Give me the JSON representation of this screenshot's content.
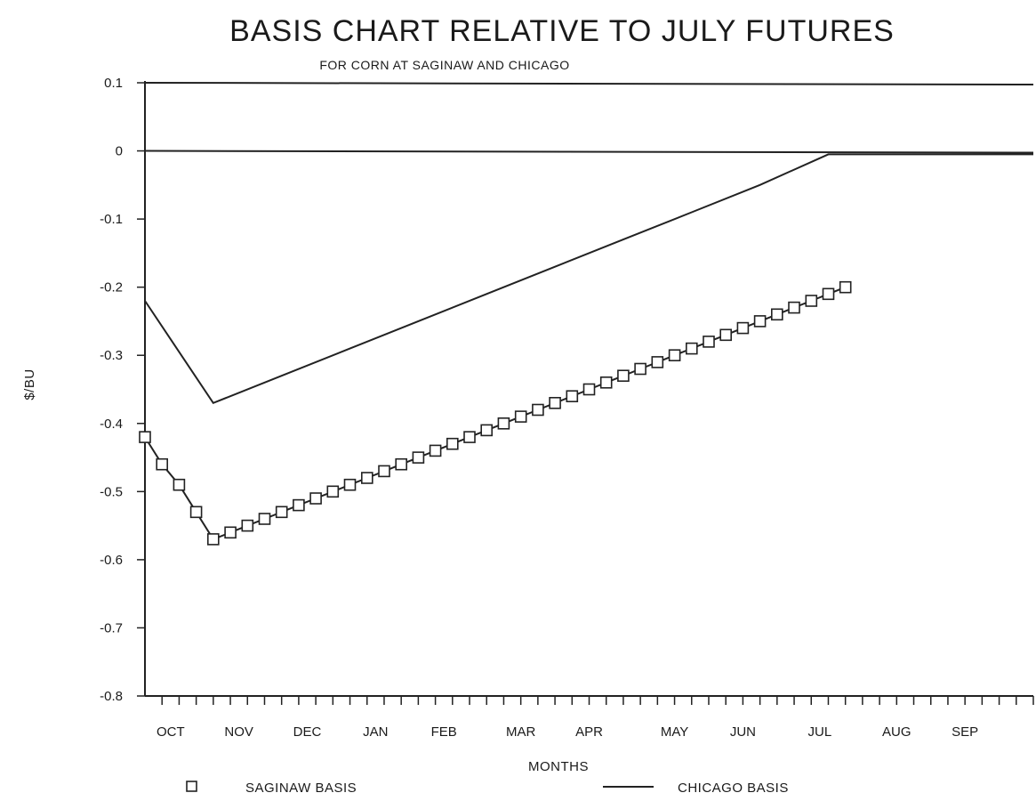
{
  "chart_data": {
    "type": "line",
    "title": "BASIS CHART RELATIVE TO JULY FUTURES",
    "subtitle": "FOR CORN AT SAGINAW AND CHICAGO",
    "xlabel": "MONTHS",
    "ylabel": "$/BU",
    "ylim": [
      -0.8,
      0.1
    ],
    "yticks": [
      "0.1",
      "0",
      "-0.1",
      "-0.2",
      "-0.3",
      "-0.4",
      "-0.5",
      "-0.6",
      "-0.7",
      "-0.8"
    ],
    "ytick_values": [
      0.1,
      0,
      -0.1,
      -0.2,
      -0.3,
      -0.4,
      -0.5,
      -0.6,
      -0.7,
      -0.8
    ],
    "xlim": [
      0,
      52
    ],
    "x_unit": "weeks",
    "x_categories": [
      "OCT",
      "NOV",
      "DEC",
      "JAN",
      "FEB",
      "MAR",
      "APR",
      "MAY",
      "JUN",
      "JUL",
      "AUG",
      "SEP"
    ],
    "x_category_positions": [
      1.5,
      5.5,
      9.5,
      13.5,
      17.5,
      22,
      26,
      31,
      35,
      39.5,
      44,
      48
    ],
    "grid": false,
    "legend_position": "bottom",
    "reference_lines": [
      0.1,
      0
    ],
    "series": [
      {
        "name": "SAGINAW BASIS",
        "marker": "square",
        "x": [
          0,
          1,
          2,
          3,
          4,
          5,
          6,
          7,
          8,
          9,
          10,
          11,
          12,
          13,
          14,
          15,
          16,
          17,
          18,
          19,
          20,
          21,
          22,
          23,
          24,
          25,
          26,
          27,
          28,
          29,
          30,
          31,
          32,
          33,
          34,
          35,
          36,
          37,
          38,
          39,
          40,
          41
        ],
        "y": [
          -0.42,
          -0.46,
          -0.49,
          -0.53,
          -0.57,
          -0.56,
          -0.55,
          -0.54,
          -0.53,
          -0.52,
          -0.51,
          -0.5,
          -0.49,
          -0.48,
          -0.47,
          -0.46,
          -0.45,
          -0.44,
          -0.43,
          -0.42,
          -0.41,
          -0.4,
          -0.39,
          -0.38,
          -0.37,
          -0.36,
          -0.35,
          -0.34,
          -0.33,
          -0.32,
          -0.31,
          -0.3,
          -0.29,
          -0.28,
          -0.27,
          -0.26,
          -0.25,
          -0.24,
          -0.23,
          -0.22,
          -0.21,
          -0.2
        ]
      },
      {
        "name": "CHICAGO BASIS",
        "marker": "none",
        "x": [
          0,
          4,
          8,
          12,
          16,
          20,
          24,
          28,
          32,
          36,
          40,
          52
        ],
        "y": [
          -0.22,
          -0.37,
          -0.33,
          -0.29,
          -0.25,
          -0.21,
          -0.17,
          -0.13,
          -0.09,
          -0.05,
          -0.005,
          -0.005
        ]
      }
    ]
  }
}
